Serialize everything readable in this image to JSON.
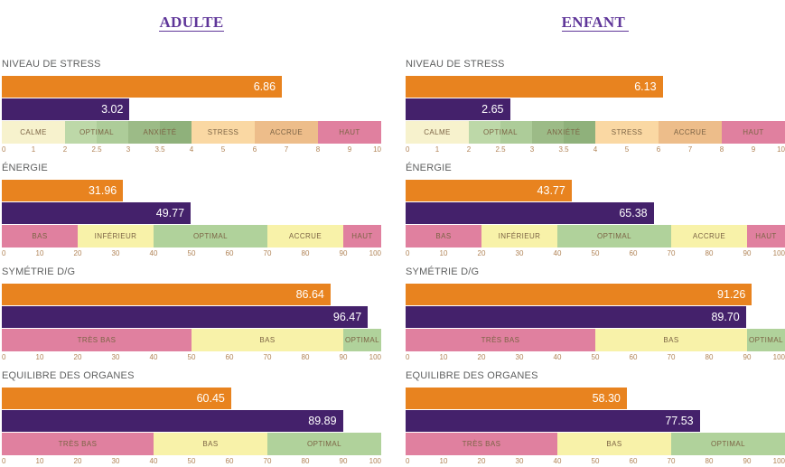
{
  "columns": [
    {
      "title": "ADULTE",
      "chart_indexes": [
        0,
        1,
        2,
        3
      ]
    },
    {
      "title": "ENFANT ",
      "chart_indexes": [
        4,
        5,
        6,
        7
      ]
    }
  ],
  "scales": {
    "stress": {
      "xlim": [
        0,
        10
      ],
      "tick_labels": [
        "0",
        "1",
        "2",
        "2.5",
        "3",
        "3.5",
        "4",
        "5",
        "6",
        "7",
        "8",
        "9",
        "10"
      ],
      "tick_values": [
        0,
        1,
        2,
        2.5,
        3,
        3.5,
        4,
        5,
        6,
        7,
        8,
        9,
        10
      ],
      "bands": [
        {
          "label": "CALME",
          "from": 0,
          "to": 2,
          "color": "#f7f2cd"
        },
        {
          "label": "OPTIMAL",
          "from": 2,
          "to": 3,
          "color": "#bdd8a8",
          "color2": "#adcc99"
        },
        {
          "label": "ANXIÉTÉ",
          "from": 3,
          "to": 4,
          "color": "#9cbb87",
          "color2": "#8fb17b"
        },
        {
          "label": "STRESS",
          "from": 4,
          "to": 6,
          "color": "#fad8a3"
        },
        {
          "label": "ACCRUE",
          "from": 6,
          "to": 8,
          "color": "#edbd8a"
        },
        {
          "label": "HAUT",
          "from": 8,
          "to": 10,
          "color": "#e0809f"
        }
      ]
    },
    "energie": {
      "xlim": [
        0,
        100
      ],
      "tick_labels": [
        "0",
        "10",
        "20",
        "30",
        "40",
        "50",
        "60",
        "70",
        "80",
        "90",
        "100"
      ],
      "tick_values": [
        0,
        10,
        20,
        30,
        40,
        50,
        60,
        70,
        80,
        90,
        100
      ],
      "bands": [
        {
          "label": "BAS",
          "from": 0,
          "to": 20,
          "color": "#e0809f"
        },
        {
          "label": "INFÉRIEUR",
          "from": 20,
          "to": 40,
          "color": "#f8f2a9"
        },
        {
          "label": "OPTIMAL",
          "from": 40,
          "to": 70,
          "color": "#b0d29b"
        },
        {
          "label": "ACCRUE",
          "from": 70,
          "to": 90,
          "color": "#f8f2a9"
        },
        {
          "label": "HAUT",
          "from": 90,
          "to": 100,
          "color": "#e0809f"
        }
      ]
    },
    "symetrie": {
      "xlim": [
        0,
        100
      ],
      "tick_labels": [
        "0",
        "10",
        "20",
        "30",
        "40",
        "50",
        "60",
        "70",
        "80",
        "90",
        "100"
      ],
      "tick_values": [
        0,
        10,
        20,
        30,
        40,
        50,
        60,
        70,
        80,
        90,
        100
      ],
      "bands": [
        {
          "label": "TRÈS BAS",
          "from": 0,
          "to": 50,
          "color": "#e0809f"
        },
        {
          "label": "BAS",
          "from": 50,
          "to": 90,
          "color": "#f8f2a9"
        },
        {
          "label": "OPTIMAL",
          "from": 90,
          "to": 100,
          "color": "#b0d29b"
        }
      ]
    },
    "organes": {
      "xlim": [
        0,
        100
      ],
      "tick_labels": [
        "0",
        "10",
        "20",
        "30",
        "40",
        "50",
        "60",
        "70",
        "80",
        "90",
        "100"
      ],
      "tick_values": [
        0,
        10,
        20,
        30,
        40,
        50,
        60,
        70,
        80,
        90,
        100
      ],
      "bands": [
        {
          "label": "TRÈS BAS",
          "from": 0,
          "to": 40,
          "color": "#e0809f"
        },
        {
          "label": "BAS",
          "from": 40,
          "to": 70,
          "color": "#f8f2a9"
        },
        {
          "label": "OPTIMAL",
          "from": 70,
          "to": 100,
          "color": "#b0d29b"
        }
      ]
    }
  },
  "chart_data": [
    {
      "type": "bar",
      "group": "ADULTE",
      "title": "NIVEAU DE STRESS",
      "scale": "stress",
      "series": [
        {
          "name": "orange",
          "value": 6.86,
          "label": "6.86"
        },
        {
          "name": "violet",
          "value": 3.02,
          "label": "3.02"
        }
      ]
    },
    {
      "type": "bar",
      "group": "ADULTE",
      "title": "ÉNERGIE",
      "scale": "energie",
      "series": [
        {
          "name": "orange",
          "value": 31.96,
          "label": "31.96"
        },
        {
          "name": "violet",
          "value": 49.77,
          "label": "49.77"
        }
      ]
    },
    {
      "type": "bar",
      "group": "ADULTE",
      "title": "SYMÉTRIE D/G",
      "scale": "symetrie",
      "series": [
        {
          "name": "orange",
          "value": 86.64,
          "label": "86.64"
        },
        {
          "name": "violet",
          "value": 96.47,
          "label": "96.47"
        }
      ]
    },
    {
      "type": "bar",
      "group": "ADULTE",
      "title": "EQUILIBRE DES ORGANES",
      "scale": "organes",
      "series": [
        {
          "name": "orange",
          "value": 60.45,
          "label": "60.45"
        },
        {
          "name": "violet",
          "value": 89.89,
          "label": "89.89"
        }
      ]
    },
    {
      "type": "bar",
      "group": "ENFANT",
      "title": "NIVEAU DE STRESS",
      "scale": "stress",
      "series": [
        {
          "name": "orange",
          "value": 6.13,
          "label": "6.13"
        },
        {
          "name": "violet",
          "value": 2.65,
          "label": "2.65"
        }
      ]
    },
    {
      "type": "bar",
      "group": "ENFANT",
      "title": "ÉNERGIE",
      "scale": "energie",
      "series": [
        {
          "name": "orange",
          "value": 43.77,
          "label": "43.77"
        },
        {
          "name": "violet",
          "value": 65.38,
          "label": "65.38"
        }
      ]
    },
    {
      "type": "bar",
      "group": "ENFANT",
      "title": "SYMÉTRIE D/G",
      "scale": "symetrie",
      "series": [
        {
          "name": "orange",
          "value": 91.26,
          "label": "91.26"
        },
        {
          "name": "violet",
          "value": 89.7,
          "label": "89.70"
        }
      ]
    },
    {
      "type": "bar",
      "group": "ENFANT",
      "title": "EQUILIBRE DES ORGANES",
      "scale": "organes",
      "series": [
        {
          "name": "orange",
          "value": 58.3,
          "label": "58.30"
        },
        {
          "name": "violet",
          "value": 77.53,
          "label": "77.53"
        }
      ]
    }
  ],
  "colors": {
    "orange_bar": "#e8831f",
    "purple_bar": "#44216b",
    "title": "#5f3699",
    "section_label": "#5f6060",
    "tick_label": "#b18457",
    "band_label": "#7c6445"
  }
}
